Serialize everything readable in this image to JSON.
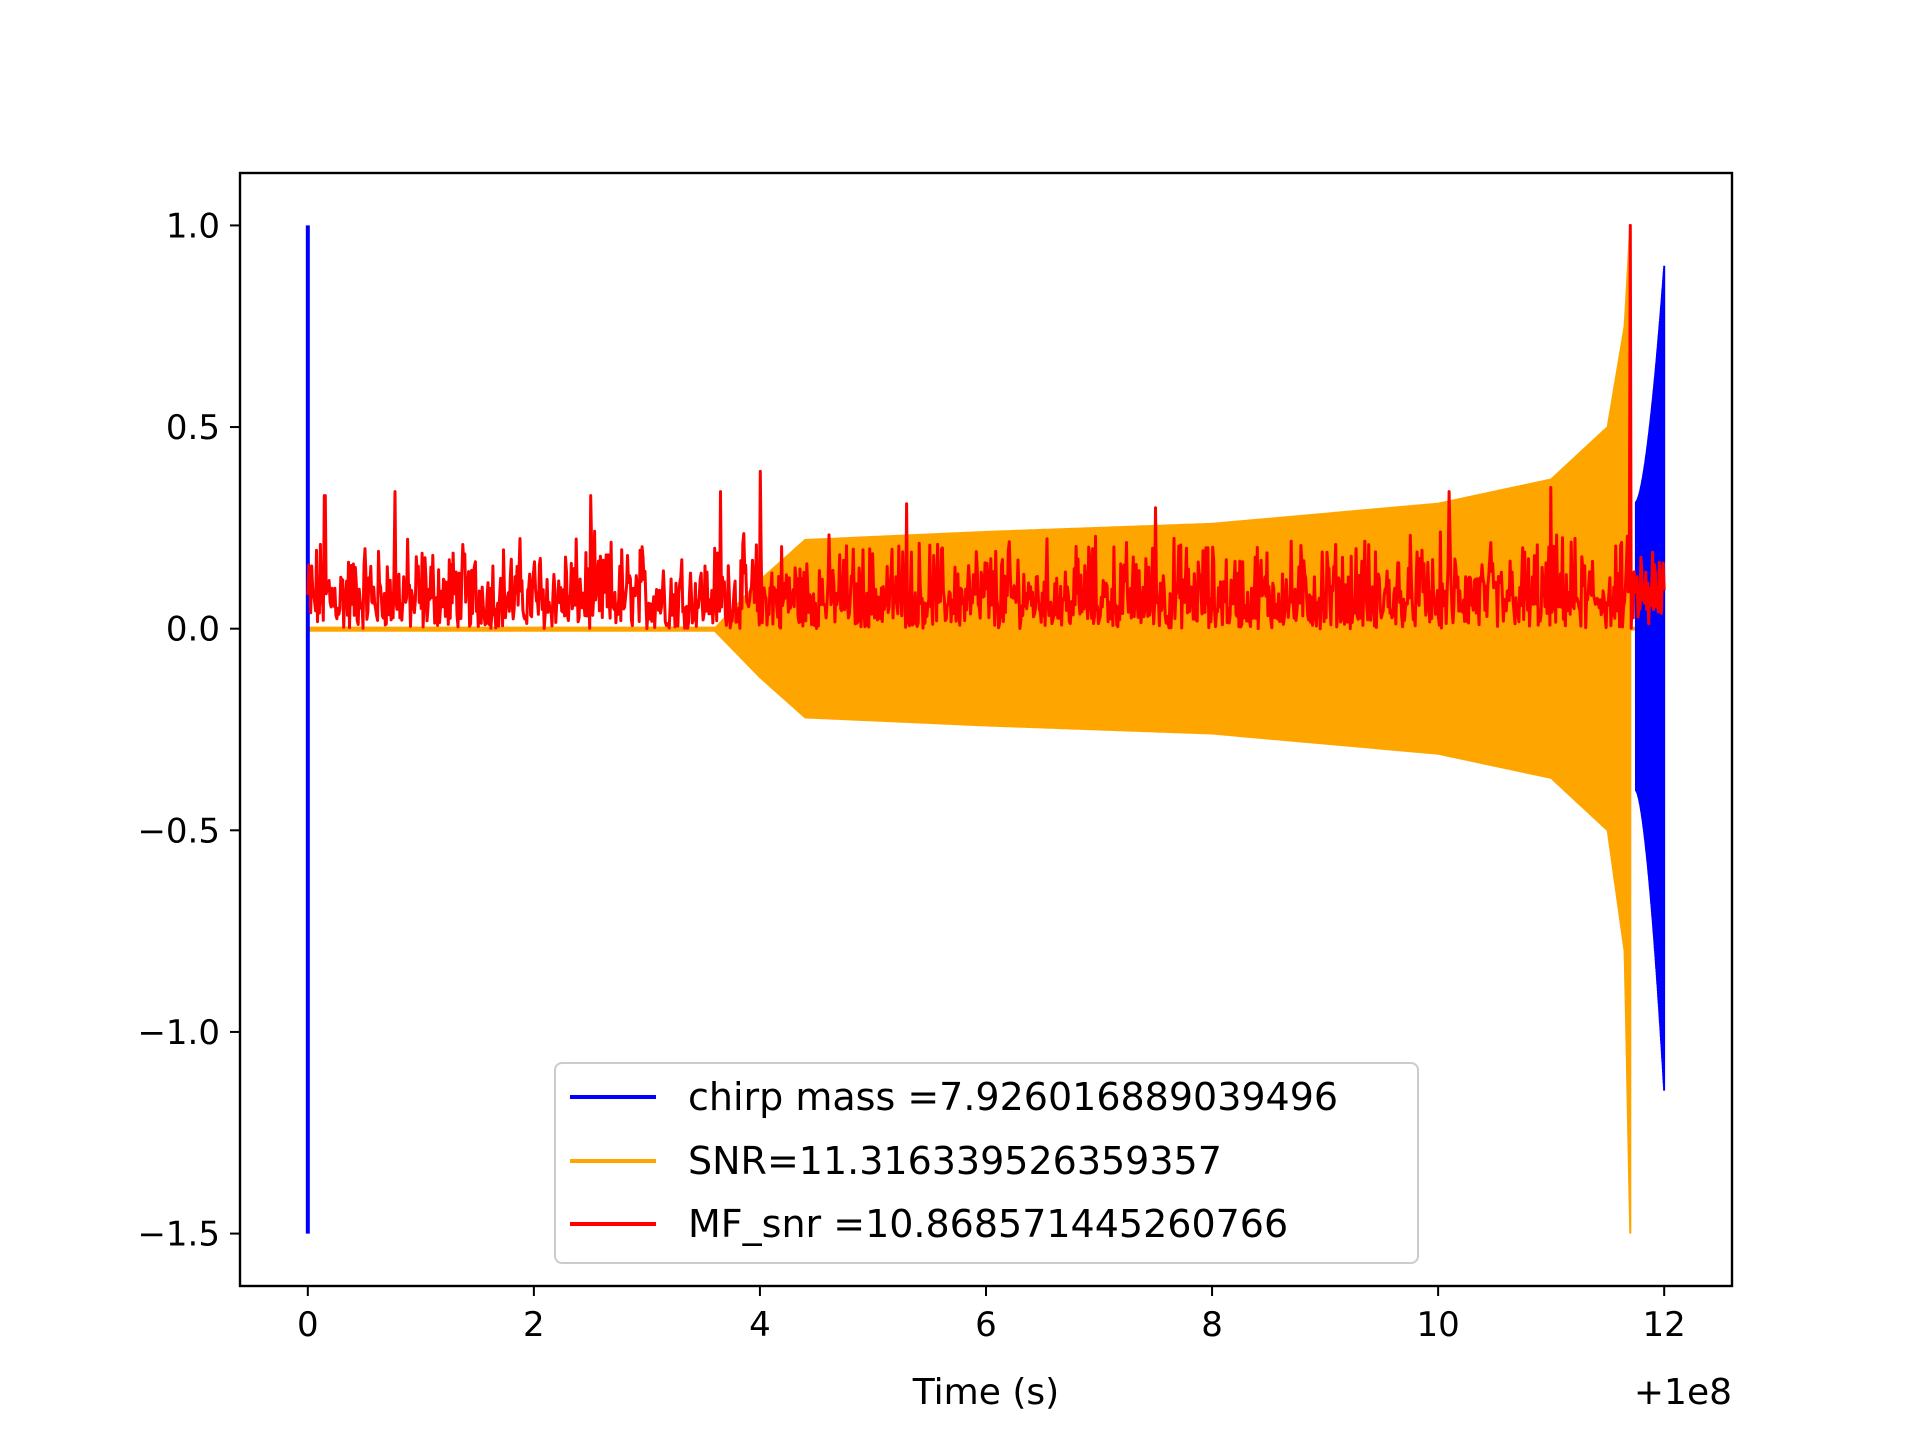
{
  "chart_data": {
    "type": "line",
    "xlabel": "Time (s)",
    "x_offset_label": "+1e8",
    "xlim": [
      -0.6,
      12.6
    ],
    "ylim": [
      -1.63,
      1.13
    ],
    "x_ticks": [
      0,
      2,
      4,
      6,
      8,
      10,
      12
    ],
    "x_tick_labels": [
      "0",
      "2",
      "4",
      "6",
      "8",
      "10",
      "12"
    ],
    "y_ticks": [
      1.0,
      0.5,
      0.0,
      -0.5,
      -1.0,
      -1.5
    ],
    "y_tick_labels": [
      "1.0",
      "0.5",
      "0.0",
      "−0.5",
      "−1.0",
      "−1.5"
    ],
    "grid": false,
    "legend_position": "lower-center",
    "series": [
      {
        "name": "chirp mass =7.926016889039496",
        "color": "#0000ff",
        "description_points": {
          "initial_spike": {
            "t": 0.0,
            "min": -1.5,
            "max": 1.0
          },
          "chirp_start_t": 11.75,
          "chirp_end_t": 12.0,
          "chirp_max": 0.9,
          "chirp_min": -1.15
        }
      },
      {
        "name": "SNR=11.316339526359357",
        "color": "#ffa500",
        "envelope": {
          "t": [
            0.0,
            3.6,
            4.0,
            4.4,
            6.0,
            8.0,
            10.0,
            11.0,
            11.5,
            11.65,
            11.7
          ],
          "max": [
            0.0,
            0.0,
            0.12,
            0.22,
            0.24,
            0.26,
            0.31,
            0.37,
            0.5,
            0.75,
            1.0
          ],
          "min": [
            -0.005,
            -0.005,
            -0.12,
            -0.22,
            -0.24,
            -0.26,
            -0.31,
            -0.37,
            -0.5,
            -0.8,
            -1.5
          ]
        }
      },
      {
        "name": "MF_snr =10.868571445260766",
        "color": "#ff0000",
        "noise_band": {
          "t_start": 0.0,
          "t_end": 12.0,
          "baseline_min": 0.0,
          "typical_max": 0.25
        },
        "peaks": [
          {
            "t": 0.15,
            "y": 0.33
          },
          {
            "t": 0.77,
            "y": 0.34
          },
          {
            "t": 2.5,
            "y": 0.33
          },
          {
            "t": 3.65,
            "y": 0.34
          },
          {
            "t": 4.0,
            "y": 0.39
          },
          {
            "t": 5.3,
            "y": 0.31
          },
          {
            "t": 7.5,
            "y": 0.3
          },
          {
            "t": 10.1,
            "y": 0.34
          },
          {
            "t": 11.0,
            "y": 0.35
          },
          {
            "t": 11.7,
            "y": 1.0
          }
        ]
      }
    ]
  }
}
